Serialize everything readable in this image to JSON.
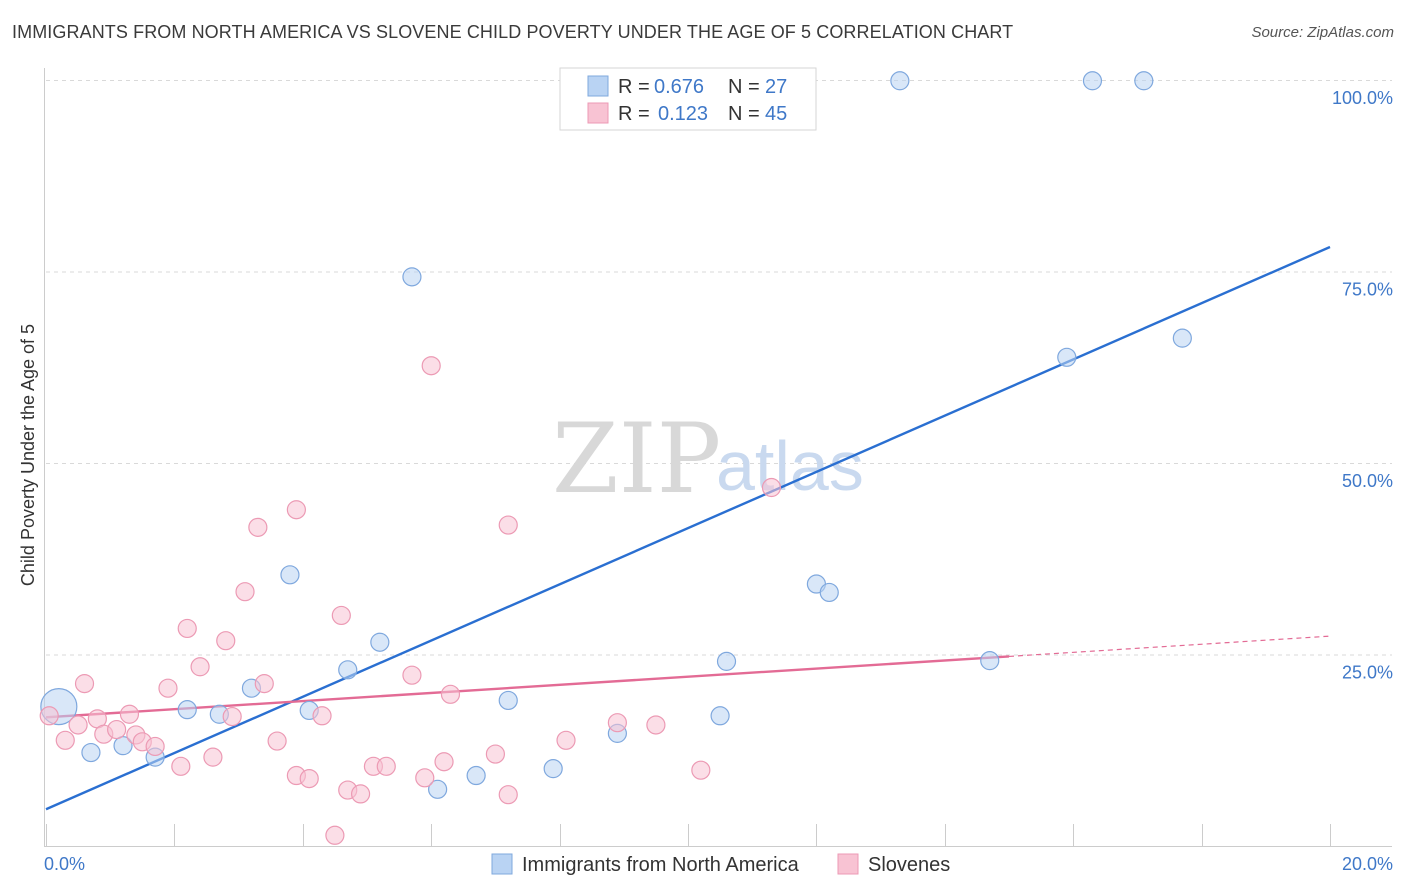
{
  "title": "IMMIGRANTS FROM NORTH AMERICA VS SLOVENE CHILD POVERTY UNDER THE AGE OF 5 CORRELATION CHART",
  "source": "Source: ZipAtlas.com",
  "watermark": {
    "zip": "ZIP",
    "atlas": "atlas"
  },
  "colors": {
    "blue": "#2a6fd1",
    "blue_fill": "#b9d3f3",
    "pink": "#e36b95",
    "pink_fill": "#f8c3d3",
    "grid": "#d9d9d9",
    "tick_text": "#3f78c8"
  },
  "legend_stats": [
    {
      "r_label": "R = ",
      "r_value": "0.676",
      "n_label": "N = ",
      "n_value": "27"
    },
    {
      "r_label": "R = ",
      "r_value": "0.123",
      "n_label": "N = ",
      "n_value": "45"
    }
  ],
  "chart_data": {
    "type": "scatter",
    "title": "IMMIGRANTS FROM NORTH AMERICA VS SLOVENE CHILD POVERTY UNDER THE AGE OF 5 CORRELATION CHART",
    "xlabel": "",
    "ylabel": "Child Poverty Under the Age of 5",
    "xlim": [
      0,
      20
    ],
    "ylim": [
      0,
      100
    ],
    "x_tick_labels": [
      "0.0%",
      "20.0%"
    ],
    "y_ticks": [
      25,
      50,
      75,
      100
    ],
    "y_tick_labels": [
      "25.0%",
      "50.0%",
      "75.0%",
      "100.0%"
    ],
    "grid": true,
    "legend_position": "bottom",
    "series": [
      {
        "name": "Immigrants from North America",
        "color": "#2a6fd1",
        "points": [
          [
            0.2,
            18.2
          ],
          [
            0.7,
            12.2
          ],
          [
            1.2,
            13.1
          ],
          [
            1.7,
            11.6
          ],
          [
            2.2,
            17.8
          ],
          [
            2.7,
            17.2
          ],
          [
            3.2,
            20.6
          ],
          [
            3.8,
            35.4
          ],
          [
            4.1,
            17.7
          ],
          [
            4.7,
            23.0
          ],
          [
            5.2,
            26.6
          ],
          [
            5.7,
            74.3
          ],
          [
            6.1,
            7.4
          ],
          [
            6.7,
            9.2
          ],
          [
            7.2,
            19.0
          ],
          [
            7.9,
            10.1
          ],
          [
            8.9,
            14.7
          ],
          [
            10.5,
            17.0
          ],
          [
            10.6,
            24.1
          ],
          [
            12.0,
            34.2
          ],
          [
            12.2,
            33.1
          ],
          [
            13.3,
            99.9
          ],
          [
            14.7,
            24.2
          ],
          [
            15.9,
            63.8
          ],
          [
            16.3,
            99.9
          ],
          [
            17.1,
            99.9
          ],
          [
            17.7,
            66.3
          ]
        ],
        "trend": {
          "x": [
            0,
            20
          ],
          "y": [
            4.8,
            78.2
          ],
          "dashed_from_x": null
        }
      },
      {
        "name": "Slovenes",
        "color": "#e36b95",
        "points": [
          [
            0.05,
            17.0
          ],
          [
            0.3,
            13.8
          ],
          [
            0.5,
            15.8
          ],
          [
            0.6,
            21.2
          ],
          [
            0.8,
            16.6
          ],
          [
            0.9,
            14.6
          ],
          [
            1.1,
            15.2
          ],
          [
            1.3,
            17.2
          ],
          [
            1.4,
            14.5
          ],
          [
            1.5,
            13.6
          ],
          [
            1.7,
            13.0
          ],
          [
            1.9,
            20.6
          ],
          [
            2.1,
            10.4
          ],
          [
            2.2,
            28.4
          ],
          [
            2.4,
            23.4
          ],
          [
            2.6,
            11.6
          ],
          [
            2.8,
            26.8
          ],
          [
            2.9,
            16.9
          ],
          [
            3.1,
            33.2
          ],
          [
            3.3,
            41.6
          ],
          [
            3.4,
            21.2
          ],
          [
            3.6,
            13.7
          ],
          [
            3.9,
            9.2
          ],
          [
            3.9,
            43.9
          ],
          [
            4.1,
            8.8
          ],
          [
            4.3,
            17.0
          ],
          [
            4.5,
            1.4
          ],
          [
            4.6,
            30.1
          ],
          [
            4.7,
            7.3
          ],
          [
            4.9,
            6.8
          ],
          [
            5.1,
            10.4
          ],
          [
            5.3,
            10.4
          ],
          [
            5.7,
            22.3
          ],
          [
            5.9,
            8.9
          ],
          [
            6.0,
            62.7
          ],
          [
            6.2,
            11.0
          ],
          [
            6.3,
            19.8
          ],
          [
            7.0,
            12.0
          ],
          [
            7.2,
            6.7
          ],
          [
            7.2,
            41.9
          ],
          [
            8.1,
            13.8
          ],
          [
            8.9,
            16.1
          ],
          [
            9.5,
            15.8
          ],
          [
            10.2,
            9.9
          ],
          [
            11.3,
            46.8
          ]
        ],
        "trend": {
          "x": [
            0,
            20
          ],
          "y": [
            16.8,
            27.4
          ],
          "dashed_from_x": 15.0
        }
      }
    ]
  }
}
